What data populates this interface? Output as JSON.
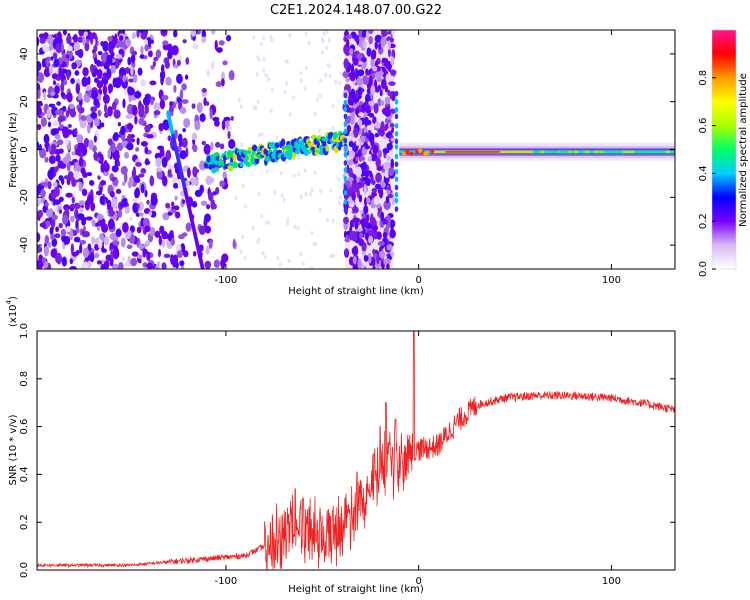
{
  "title": "C2E1.2024.148.07.00.G22",
  "chart_data": [
    {
      "type": "heatmap",
      "xlabel": "Height of straight line (km)",
      "ylabel": "Frequency (Hz)",
      "xlim": [
        -198,
        133
      ],
      "ylim": [
        -50,
        50
      ],
      "xticks": [
        -100,
        0,
        100
      ],
      "yticks": [
        -40,
        -20,
        0,
        20,
        40
      ],
      "colorbar": {
        "label": "Normalized spectral amplitude",
        "range": [
          0.0,
          1.0
        ],
        "ticks": [
          "0.0",
          "0.2",
          "0.4",
          "0.6",
          "0.8"
        ],
        "colormap": [
          "#ffffff",
          "#d8b8f4",
          "#7a00ff",
          "#0000ff",
          "#00cfff",
          "#00ff66",
          "#aaff00",
          "#ffff00",
          "#ff9900",
          "#ff0000",
          "#ff1493"
        ]
      },
      "features": [
        {
          "name": "noise band",
          "x_range": [
            -198,
            -95
          ]
        },
        {
          "name": "descending streak",
          "x_range": [
            -130,
            -112
          ],
          "y_range": [
            15,
            -50
          ]
        },
        {
          "name": "rising streak",
          "x_range": [
            -110,
            -38
          ],
          "y_range": [
            -6,
            4
          ]
        },
        {
          "name": "noise band",
          "x_range": [
            -38,
            -13
          ]
        },
        {
          "name": "steady line",
          "x_range": [
            -10,
            133
          ],
          "y": -1
        }
      ]
    },
    {
      "type": "line",
      "xlabel": "Height of straight line (km)",
      "ylabel": "SNR (10 * v/v)",
      "scale": "(x10⁴)",
      "scale_base": "(x10",
      "scale_exp": "4",
      "xlim": [
        -198,
        133
      ],
      "ylim": [
        0,
        1.0
      ],
      "xticks": [
        -100,
        0,
        100
      ],
      "yticks": [
        "0.0",
        "0.2",
        "0.4",
        "0.6",
        "0.8",
        "1.0"
      ],
      "color": "#ee2222",
      "envelope": [
        {
          "x": -198,
          "y": 0.02
        },
        {
          "x": -150,
          "y": 0.02
        },
        {
          "x": -120,
          "y": 0.04
        },
        {
          "x": -90,
          "y": 0.06
        },
        {
          "x": -75,
          "y": 0.12
        },
        {
          "x": -62,
          "y": 0.2
        },
        {
          "x": -50,
          "y": 0.13
        },
        {
          "x": -40,
          "y": 0.18
        },
        {
          "x": -30,
          "y": 0.3
        },
        {
          "x": -20,
          "y": 0.42
        },
        {
          "x": -10,
          "y": 0.45
        },
        {
          "x": -2,
          "y": 0.5
        },
        {
          "x": 10,
          "y": 0.52
        },
        {
          "x": 20,
          "y": 0.62
        },
        {
          "x": 30,
          "y": 0.69
        },
        {
          "x": 45,
          "y": 0.72
        },
        {
          "x": 60,
          "y": 0.73
        },
        {
          "x": 80,
          "y": 0.73
        },
        {
          "x": 100,
          "y": 0.72
        },
        {
          "x": 115,
          "y": 0.7
        },
        {
          "x": 133,
          "y": 0.67
        }
      ],
      "spikes": [
        {
          "x": -64,
          "y": 0.34
        },
        {
          "x": -60,
          "y": 0.3
        },
        {
          "x": -32,
          "y": 0.41
        },
        {
          "x": -20,
          "y": 0.6
        },
        {
          "x": -17,
          "y": 0.7
        },
        {
          "x": -12,
          "y": 0.63
        },
        {
          "x": -2.5,
          "y": 1.0
        }
      ]
    }
  ]
}
